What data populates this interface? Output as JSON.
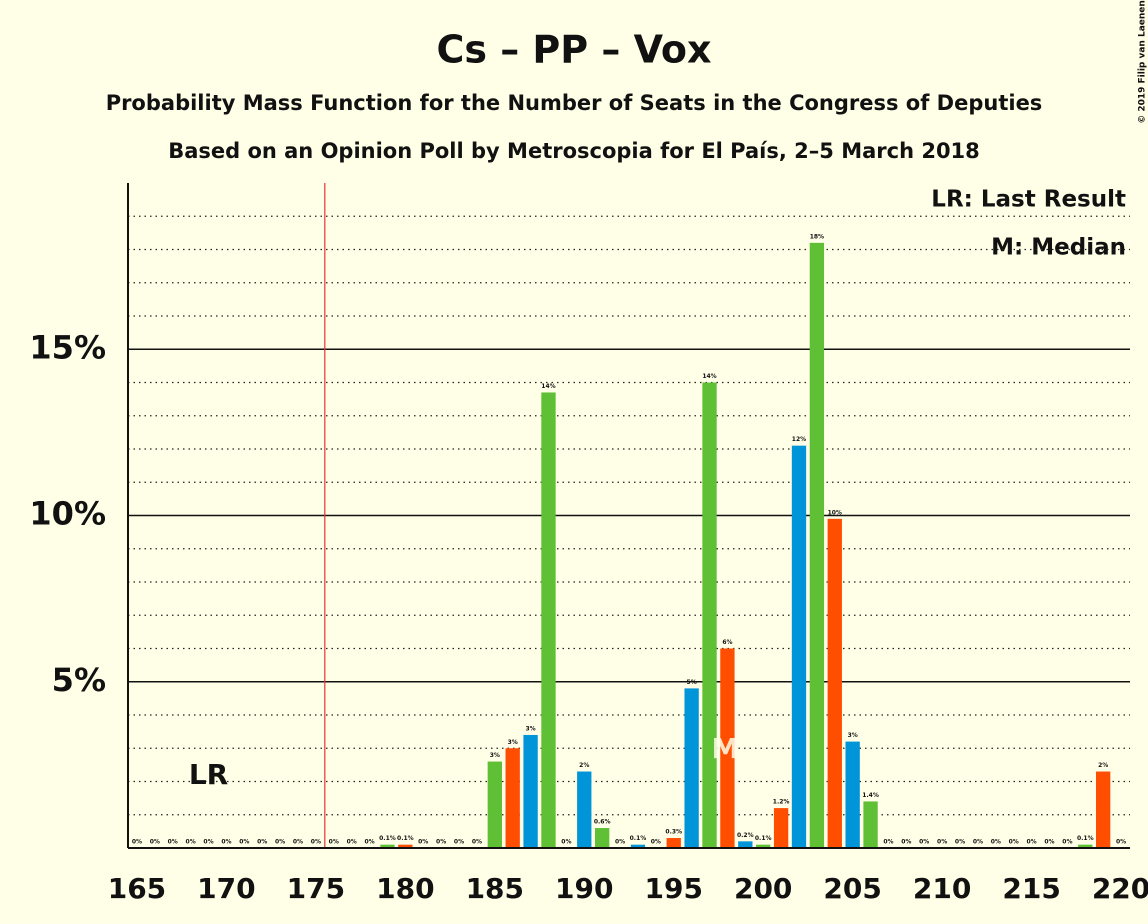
{
  "chart_data": {
    "type": "bar",
    "title": "Cs – PP – Vox",
    "subtitle": "Probability Mass Function for the Number of Seats in the Congress of Deputies",
    "subtitle2": "Based on an Opinion Poll by Metroscopia for El País, 2–5 March 2018",
    "copyright": "© 2019 Filip van Laenen",
    "legend_lr": "LR: Last Result",
    "legend_median": "M: Median",
    "lr_label": "LR",
    "last_result": 169,
    "median_label": "M",
    "median": 198,
    "majority_line": 175.5,
    "majority_color": "#e8313a",
    "x": [
      165,
      166,
      167,
      168,
      169,
      170,
      171,
      172,
      173,
      174,
      175,
      176,
      177,
      178,
      179,
      180,
      181,
      182,
      183,
      184,
      185,
      186,
      187,
      188,
      189,
      190,
      191,
      192,
      193,
      194,
      195,
      196,
      197,
      198,
      199,
      200,
      201,
      202,
      203,
      204,
      205,
      206,
      207,
      208,
      209,
      210,
      211,
      212,
      213,
      214,
      215,
      216,
      217,
      218,
      219,
      220
    ],
    "values": [
      0,
      0,
      0,
      0,
      0,
      0,
      0,
      0,
      0,
      0,
      0,
      0,
      0,
      0,
      0.1,
      0.1,
      0,
      0,
      0,
      0,
      2.6,
      3.0,
      3.4,
      13.7,
      0,
      2.3,
      0.6,
      0,
      0.1,
      0,
      0.3,
      4.8,
      14.0,
      6.0,
      0.2,
      0.1,
      1.2,
      12.1,
      18.2,
      9.9,
      3.2,
      1.4,
      0,
      0,
      0,
      0,
      0,
      0,
      0,
      0,
      0,
      0,
      0,
      0.1,
      2.3,
      0
    ],
    "value_labels": [
      "0%",
      "0%",
      "0%",
      "0%",
      "0%",
      "0%",
      "0%",
      "0%",
      "0%",
      "0%",
      "0%",
      "0%",
      "0%",
      "0%",
      "0.1%",
      "0.1%",
      "0%",
      "0%",
      "0%",
      "0%",
      "3%",
      "3%",
      "3%",
      "14%",
      "0%",
      "2%",
      "0.6%",
      "0%",
      "0.1%",
      "0%",
      "0.3%",
      "5%",
      "14%",
      "6%",
      "0.2%",
      "0.1%",
      "1.2%",
      "12%",
      "18%",
      "10%",
      "3%",
      "1.4%",
      "0%",
      "0%",
      "0%",
      "0%",
      "0%",
      "0%",
      "0%",
      "0%",
      "0%",
      "0%",
      "0%",
      "0.1%",
      "2%",
      "0%"
    ],
    "colors": [
      "#ff4e00",
      "#0095d9",
      "#5fbf35"
    ],
    "xlim": [
      164.5,
      220.5
    ],
    "xticks": [
      165,
      170,
      175,
      180,
      185,
      190,
      195,
      200,
      205,
      210,
      215,
      220
    ],
    "ylim": [
      0,
      20
    ],
    "yticks": [
      {
        "value": 5,
        "label": "5%"
      },
      {
        "value": 10,
        "label": "10%"
      },
      {
        "value": 15,
        "label": "15%"
      }
    ],
    "minor_yticks": [
      1,
      2,
      3,
      4,
      6,
      7,
      8,
      9,
      11,
      12,
      13,
      14,
      16,
      17,
      18,
      19
    ]
  }
}
